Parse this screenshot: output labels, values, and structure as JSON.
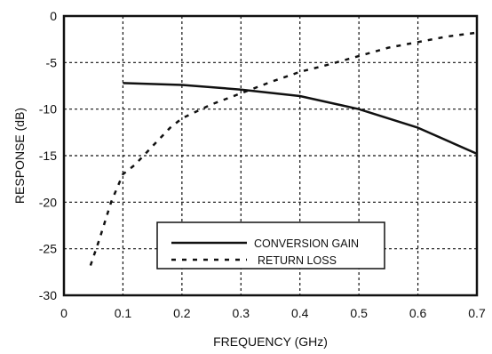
{
  "chart_data": {
    "type": "line",
    "title": "",
    "xlabel": "FREQUENCY (GHz)",
    "ylabel": "RESPONSE (dB)",
    "xlim": [
      0,
      0.7
    ],
    "ylim": [
      -30,
      0
    ],
    "xticks": [
      0,
      0.1,
      0.2,
      0.3,
      0.4,
      0.5,
      0.6,
      0.7
    ],
    "yticks": [
      0,
      -5,
      -10,
      -15,
      -20,
      -25,
      -30
    ],
    "xtick_labels": [
      "0",
      "0.1",
      "0.2",
      "0.3",
      "0.4",
      "0.5",
      "0.6",
      "0.7"
    ],
    "ytick_labels": [
      "0",
      "-5",
      "-10",
      "-15",
      "-20",
      "-25",
      "-30"
    ],
    "grid": true,
    "legend_position": "lower-center",
    "series": [
      {
        "name": "CONVERSION GAIN",
        "style": "solid",
        "color": "#111111",
        "x": [
          0.1,
          0.2,
          0.3,
          0.4,
          0.5,
          0.6,
          0.7
        ],
        "y": [
          -7.2,
          -7.4,
          -7.9,
          -8.6,
          -10.0,
          -12.0,
          -14.8
        ]
      },
      {
        "name": "RETURN LOSS",
        "style": "dashed",
        "color": "#111111",
        "x": [
          0.045,
          0.06,
          0.08,
          0.1,
          0.12,
          0.15,
          0.18,
          0.2,
          0.25,
          0.3,
          0.35,
          0.4,
          0.45,
          0.5,
          0.55,
          0.6,
          0.65,
          0.7
        ],
        "y": [
          -26.8,
          -24,
          -20,
          -17,
          -16,
          -14,
          -12,
          -11,
          -9.5,
          -8.3,
          -7.1,
          -6.0,
          -5.2,
          -4.3,
          -3.4,
          -2.8,
          -2.2,
          -1.8
        ]
      }
    ]
  }
}
